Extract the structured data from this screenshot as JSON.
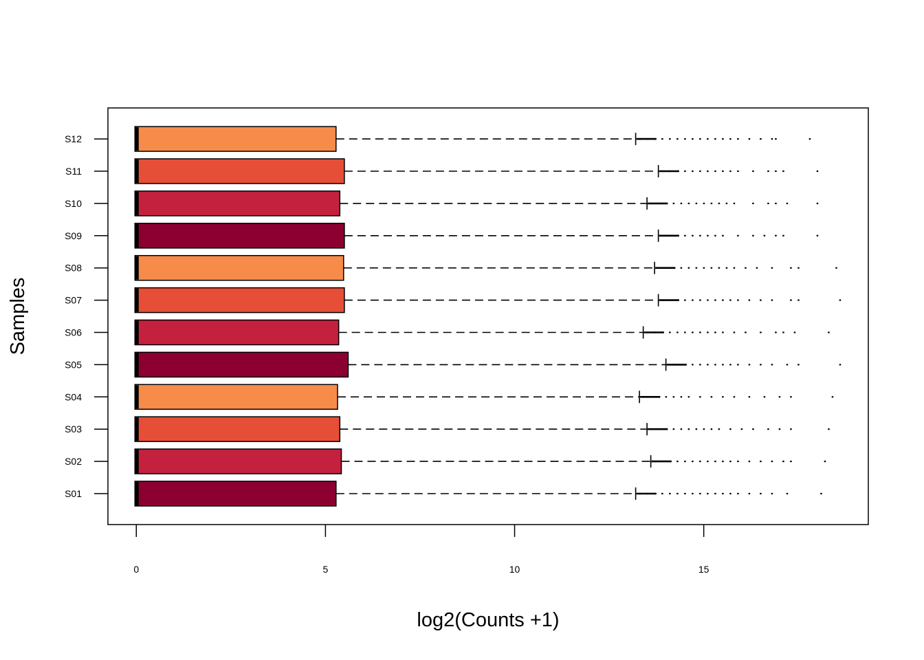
{
  "chart_data": {
    "type": "boxplot",
    "orientation": "horizontal",
    "xlabel": "log2(Counts +1)",
    "ylabel": "Samples",
    "xlim": [
      -0.75,
      19.35
    ],
    "xticks": [
      0,
      5,
      10,
      15
    ],
    "grid": false,
    "legend": "none",
    "categories": [
      "S01",
      "S02",
      "S03",
      "S04",
      "S05",
      "S06",
      "S07",
      "S08",
      "S09",
      "S10",
      "S11",
      "S12"
    ],
    "colors": {
      "S01": "#8b0030",
      "S02": "#c4213f",
      "S03": "#e64e37",
      "S04": "#f68b4a",
      "S05": "#8b0030",
      "S06": "#c4213f",
      "S07": "#e64e37",
      "S08": "#f68b4a",
      "S09": "#8b0030",
      "S10": "#c4213f",
      "S11": "#e64e37",
      "S12": "#f68b4a"
    },
    "boxes": [
      {
        "name": "S01",
        "min": 0,
        "q1": 0,
        "median": 0,
        "q3": 5.28,
        "whisker_high": 13.2,
        "outliers": [
          13.3,
          13.5,
          13.7,
          13.9,
          14.1,
          14.3,
          14.5,
          14.7,
          14.9,
          15.1,
          15.3,
          15.5,
          15.7,
          15.9,
          16.2,
          16.5,
          16.8,
          17.2,
          18.1
        ]
      },
      {
        "name": "S02",
        "min": 0,
        "q1": 0,
        "median": 0,
        "q3": 5.42,
        "whisker_high": 13.6,
        "outliers": [
          13.7,
          13.9,
          14.1,
          14.3,
          14.5,
          14.7,
          14.9,
          15.1,
          15.3,
          15.5,
          15.7,
          15.9,
          16.2,
          16.5,
          16.8,
          17.1,
          17.3,
          18.2
        ]
      },
      {
        "name": "S03",
        "min": 0,
        "q1": 0,
        "median": 0,
        "q3": 5.38,
        "whisker_high": 13.5,
        "outliers": [
          13.6,
          13.8,
          14.0,
          14.2,
          14.4,
          14.6,
          14.8,
          15.0,
          15.2,
          15.4,
          15.7,
          16.0,
          16.3,
          16.7,
          17.0,
          17.3,
          18.3
        ]
      },
      {
        "name": "S04",
        "min": 0,
        "q1": 0,
        "median": 0,
        "q3": 5.32,
        "whisker_high": 13.3,
        "outliers": [
          13.4,
          13.6,
          13.8,
          14.0,
          14.2,
          14.4,
          14.6,
          14.9,
          15.2,
          15.5,
          15.8,
          16.2,
          16.6,
          17.0,
          17.3,
          18.4
        ]
      },
      {
        "name": "S05",
        "min": 0,
        "q1": 0,
        "median": 0,
        "q3": 5.6,
        "whisker_high": 14.0,
        "outliers": [
          14.1,
          14.3,
          14.5,
          14.7,
          14.9,
          15.1,
          15.3,
          15.5,
          15.7,
          15.9,
          16.2,
          16.5,
          16.8,
          17.2,
          17.5,
          18.6
        ]
      },
      {
        "name": "S06",
        "min": 0,
        "q1": 0,
        "median": 0,
        "q3": 5.35,
        "whisker_high": 13.4,
        "outliers": [
          13.5,
          13.7,
          13.9,
          14.1,
          14.3,
          14.5,
          14.7,
          14.9,
          15.1,
          15.3,
          15.5,
          15.8,
          16.1,
          16.5,
          16.9,
          17.1,
          17.4,
          18.3
        ]
      },
      {
        "name": "S07",
        "min": 0,
        "q1": 0,
        "median": 0,
        "q3": 5.5,
        "whisker_high": 13.8,
        "outliers": [
          13.9,
          14.1,
          14.3,
          14.5,
          14.7,
          14.9,
          15.1,
          15.3,
          15.5,
          15.7,
          15.9,
          16.2,
          16.5,
          16.8,
          17.3,
          17.5,
          18.6
        ]
      },
      {
        "name": "S08",
        "min": 0,
        "q1": 0,
        "median": 0,
        "q3": 5.48,
        "whisker_high": 13.7,
        "outliers": [
          13.8,
          14.0,
          14.2,
          14.4,
          14.6,
          14.8,
          15.0,
          15.2,
          15.4,
          15.6,
          15.8,
          16.1,
          16.4,
          16.8,
          17.3,
          17.5,
          18.5
        ]
      },
      {
        "name": "S09",
        "min": 0,
        "q1": 0,
        "median": 0,
        "q3": 5.5,
        "whisker_high": 13.8,
        "outliers": [
          13.9,
          14.1,
          14.3,
          14.5,
          14.7,
          14.9,
          15.1,
          15.3,
          15.5,
          15.9,
          16.3,
          16.6,
          16.9,
          17.1,
          18.0
        ]
      },
      {
        "name": "S10",
        "min": 0,
        "q1": 0,
        "median": 0,
        "q3": 5.38,
        "whisker_high": 13.5,
        "outliers": [
          13.6,
          13.8,
          14.0,
          14.2,
          14.4,
          14.6,
          14.8,
          15.0,
          15.2,
          15.4,
          15.6,
          15.8,
          16.3,
          16.7,
          16.9,
          17.2,
          18.0
        ]
      },
      {
        "name": "S11",
        "min": 0,
        "q1": 0,
        "median": 0,
        "q3": 5.5,
        "whisker_high": 13.8,
        "outliers": [
          13.9,
          14.1,
          14.3,
          14.5,
          14.7,
          14.9,
          15.1,
          15.3,
          15.5,
          15.7,
          15.9,
          16.3,
          16.7,
          16.9,
          17.1,
          18.0
        ]
      },
      {
        "name": "S12",
        "min": 0,
        "q1": 0,
        "median": 0,
        "q3": 5.28,
        "whisker_high": 13.2,
        "outliers": [
          13.3,
          13.5,
          13.7,
          13.9,
          14.1,
          14.3,
          14.5,
          14.7,
          14.9,
          15.1,
          15.3,
          15.5,
          15.7,
          15.9,
          16.2,
          16.5,
          16.8,
          16.9,
          17.8
        ]
      }
    ]
  }
}
